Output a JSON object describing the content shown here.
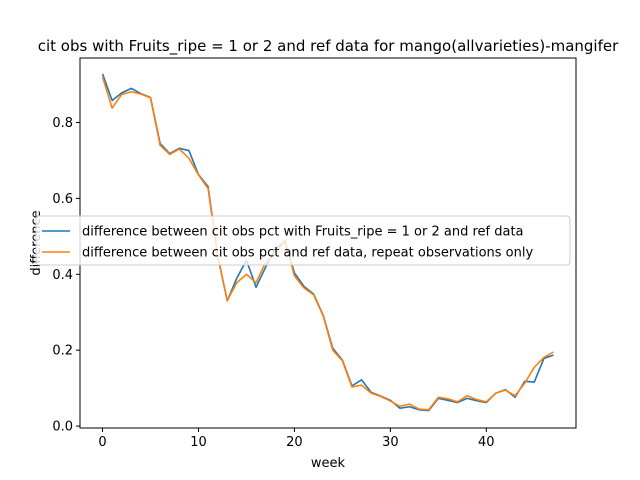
{
  "chart_data": {
    "type": "line",
    "title": "cit obs with Fruits_ripe = 1 or 2 and ref data for mango(allvarieties)-mangifer",
    "xlabel": "week",
    "ylabel": "difference",
    "xlim": [
      -2.35,
      49.35
    ],
    "ylim": [
      -0.005,
      0.97
    ],
    "xticks": [
      0,
      10,
      20,
      30,
      40
    ],
    "yticks": [
      0.0,
      0.2,
      0.4,
      0.6,
      0.8
    ],
    "ytick_labels": [
      "0.0",
      "0.2",
      "0.4",
      "0.6",
      "0.8"
    ],
    "grid": false,
    "legend_position": "center-left",
    "x": [
      0,
      1,
      2,
      3,
      4,
      5,
      6,
      7,
      8,
      9,
      10,
      11,
      12,
      13,
      14,
      15,
      16,
      17,
      18,
      19,
      20,
      21,
      22,
      23,
      24,
      25,
      26,
      27,
      28,
      29,
      30,
      31,
      32,
      33,
      34,
      35,
      36,
      37,
      38,
      39,
      40,
      41,
      42,
      43,
      44,
      45,
      46,
      47
    ],
    "series": [
      {
        "name": "difference between cit obs pct with Fruits_ripe = 1 or 2 and ref data",
        "color": "#1f77b4",
        "values": [
          0.928,
          0.858,
          0.878,
          0.89,
          0.876,
          0.866,
          0.745,
          0.718,
          0.732,
          0.726,
          0.663,
          0.631,
          0.45,
          0.33,
          0.39,
          0.437,
          0.366,
          0.419,
          0.467,
          0.486,
          0.404,
          0.368,
          0.348,
          0.292,
          0.205,
          0.174,
          0.106,
          0.122,
          0.089,
          0.079,
          0.068,
          0.047,
          0.051,
          0.043,
          0.041,
          0.073,
          0.068,
          0.062,
          0.073,
          0.067,
          0.062,
          0.087,
          0.096,
          0.076,
          0.118,
          0.116,
          0.178,
          0.187
        ]
      },
      {
        "name": "difference between cit obs pct and ref data, repeat observations only",
        "color": "#ff7f0e",
        "values": [
          0.92,
          0.838,
          0.874,
          0.881,
          0.875,
          0.865,
          0.74,
          0.716,
          0.73,
          0.706,
          0.662,
          0.626,
          0.447,
          0.331,
          0.378,
          0.4,
          0.378,
          0.432,
          0.452,
          0.49,
          0.396,
          0.364,
          0.346,
          0.29,
          0.2,
          0.172,
          0.103,
          0.108,
          0.087,
          0.078,
          0.066,
          0.052,
          0.058,
          0.045,
          0.043,
          0.076,
          0.072,
          0.064,
          0.08,
          0.07,
          0.064,
          0.087,
          0.095,
          0.08,
          0.113,
          0.155,
          0.181,
          0.195
        ]
      }
    ]
  }
}
